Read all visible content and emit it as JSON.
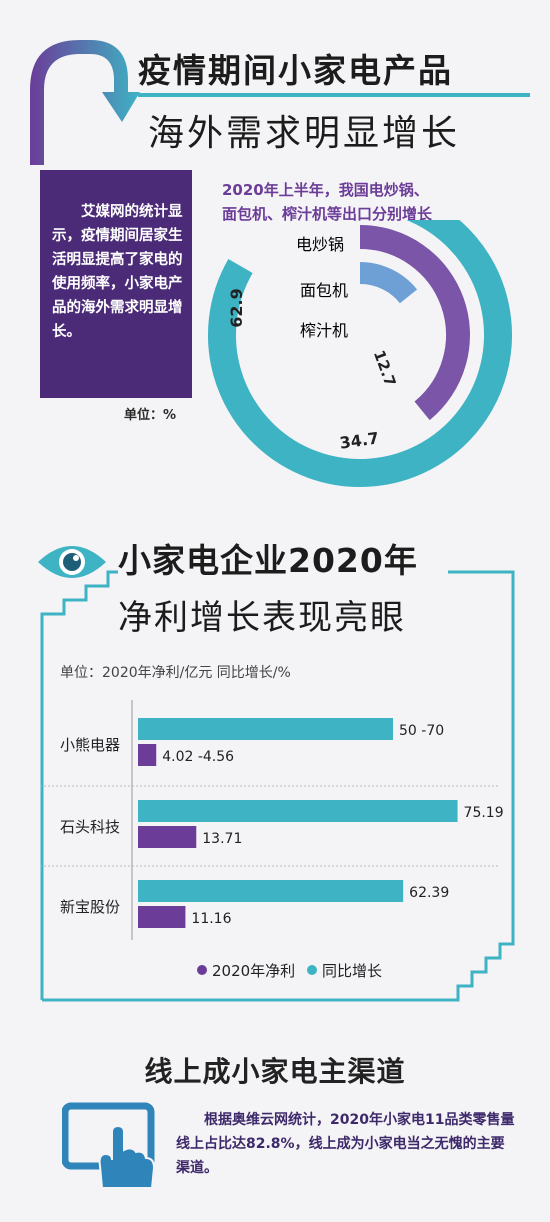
{
  "section1": {
    "title_line1": "疫情期间小家电产品",
    "title_line2": "海外需求明显增长",
    "intro": "艾媒网的统计显示，疫情期间居家生活明显提高了家电的使用频率，小家电产品的海外需求明显增长。",
    "unit": "单位：%",
    "subtitle_line1": "2020年上半年，我国电炒锅、",
    "subtitle_line2": "面包机、榨汁机等出口分别增长"
  },
  "section2": {
    "title_line1": "小家电企业2020年",
    "title_line2": "净利增长表现亮眼",
    "unit": "单位：2020年净利/亿元 同比增长/%"
  },
  "section3": {
    "title": "线上成小家电主渠道",
    "text": "根据奥维云网统计，2020年小家电11品类零售量线上占比达82.8%，线上成为小家电当之无愧的主要渠道。"
  },
  "colors": {
    "teal": "#3eb3c4",
    "purple": "#6b3d99",
    "dark_purple": "#4b2b78",
    "light_blue": "#6ea0d6",
    "light_purple": "#7b55a8"
  },
  "icons": [
    "curved-arrow-icon",
    "eye-icon",
    "tablet-touch-icon"
  ],
  "chart_data": [
    {
      "type": "pie",
      "subtype": "radial-bar",
      "categories": [
        "电炒锅",
        "面包机",
        "榨汁机"
      ],
      "values": [
        62.9,
        34.7,
        12.7
      ],
      "value_labels": [
        "62.9",
        "34.7",
        "12.7"
      ]
    },
    {
      "type": "bar",
      "orientation": "horizontal",
      "categories": [
        "小熊电器",
        "石头科技",
        "新宝股份"
      ],
      "series": [
        {
          "name": "同比增长",
          "values": [
            60,
            75.19,
            62.39
          ],
          "labels": [
            "50 -70",
            "75.19",
            "62.39"
          ]
        },
        {
          "name": "2020年净利",
          "values": [
            4.29,
            13.71,
            11.16
          ],
          "labels": [
            "4.02 -4.56",
            "13.71",
            "11.16"
          ]
        }
      ],
      "legend": [
        "2020年净利",
        "同比增长"
      ],
      "legend_position": "bottom",
      "xlim": [
        0,
        80
      ],
      "grid": false
    }
  ]
}
